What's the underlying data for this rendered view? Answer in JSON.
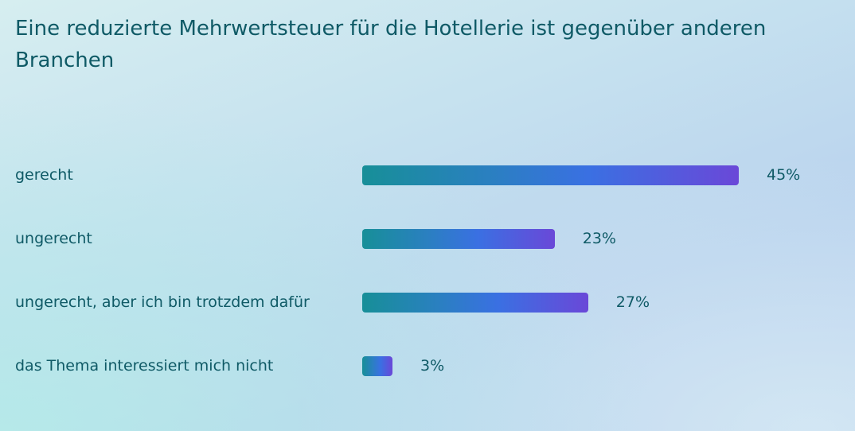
{
  "chart_data": {
    "type": "bar",
    "orientation": "horizontal",
    "title": "Eine reduzierte Mehrwertsteuer für die Hotellerie ist gegenüber anderen Branchen",
    "categories": [
      "gerecht",
      "ungerecht",
      "ungerecht, aber ich bin trotzdem dafür",
      "das Thema interessiert mich nicht"
    ],
    "values": [
      45,
      23,
      27,
      3
    ],
    "value_labels": [
      "45%",
      "23%",
      "27%",
      "3%"
    ],
    "unit": "%",
    "xlim": [
      0,
      45
    ],
    "grid": false,
    "legend": "none",
    "colors": {
      "bar_gradient_start": "#178f98",
      "bar_gradient_mid": "#3a70e2",
      "bar_gradient_end": "#6a48d8",
      "text": "#0f5a66"
    }
  }
}
